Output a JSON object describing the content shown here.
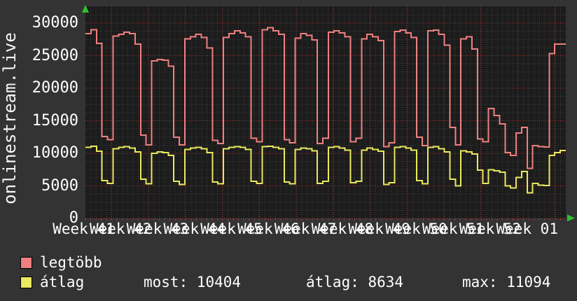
{
  "y_axis_title": "onlinestream.live",
  "footer": {
    "series1_label": "legtöbb",
    "series2_label": "átlag",
    "stat_most": "most: 10404",
    "stat_avg": "átlag: 8634",
    "stat_max": "max: 11094"
  },
  "colors": {
    "outer_background": "#333333",
    "plot_background": "#1c1c1c",
    "minor_grid": "#3e3e3e",
    "major_grid_red": "#9a3838",
    "series_max": "#f08080",
    "series_avg": "#e9e960",
    "axis_text": "#ffffff",
    "arrow_green": "#2fc22f"
  },
  "chart_data": {
    "type": "line",
    "style": "step",
    "title": "",
    "xlabel": "",
    "ylabel": "onlinestream.live",
    "grid": true,
    "legend_position": "bottom-left",
    "ylim": [
      0,
      32500
    ],
    "y_ticks": [
      0,
      5000,
      10000,
      15000,
      20000,
      25000,
      30000
    ],
    "y_minor_step": 1250,
    "x_tick_labels": [
      "Week 41",
      "Week 42",
      "Week 43",
      "Week 44",
      "Week 45",
      "Week 46",
      "Week 47",
      "Week 48",
      "Week 49",
      "Week 50",
      "Week 51",
      "Week 52",
      "Week 01"
    ],
    "weeks_shown": 13,
    "x_unit": "day",
    "stats": {
      "most": 10404,
      "atlag": 8634,
      "max": 11094
    },
    "series": [
      {
        "name": "legtöbb",
        "color": "#f08080",
        "values": [
          28400,
          29000,
          26900,
          12600,
          12100,
          28000,
          28300,
          28600,
          28400,
          26800,
          12800,
          11300,
          24200,
          24400,
          24300,
          23400,
          12500,
          11300,
          27600,
          27900,
          28300,
          27800,
          26200,
          12000,
          11500,
          27800,
          28400,
          28800,
          28500,
          27900,
          12300,
          11800,
          29000,
          29300,
          28800,
          28300,
          12100,
          11600,
          27700,
          28400,
          28100,
          27400,
          11500,
          12300,
          28600,
          28800,
          28500,
          27900,
          11800,
          12300,
          27600,
          28300,
          27900,
          27300,
          11000,
          11600,
          28700,
          28900,
          28500,
          27800,
          12500,
          11200,
          28800,
          28900,
          28300,
          26600,
          14000,
          11300,
          27600,
          27900,
          26000,
          12200,
          11800,
          16900,
          15800,
          14500,
          10100,
          9700,
          13100,
          14000,
          7700,
          11200,
          11000,
          10970,
          25300,
          26800,
          26800
        ]
      },
      {
        "name": "átlag",
        "color": "#e9e960",
        "values": [
          10900,
          11094,
          10300,
          5800,
          5400,
          10700,
          10900,
          11000,
          10800,
          10200,
          6000,
          5300,
          10000,
          10200,
          10100,
          9700,
          5700,
          5200,
          10600,
          10800,
          10900,
          10700,
          10100,
          5600,
          5300,
          10700,
          10900,
          11000,
          10900,
          10600,
          5700,
          5400,
          11000,
          11090,
          10900,
          10700,
          5600,
          5300,
          10600,
          10800,
          10700,
          10400,
          5400,
          5700,
          10900,
          11000,
          10800,
          10500,
          5500,
          5700,
          10500,
          10800,
          10600,
          10300,
          5200,
          5500,
          10900,
          11000,
          10800,
          10500,
          5800,
          5300,
          10900,
          11000,
          10700,
          10200,
          6000,
          5000,
          10400,
          10200,
          9900,
          7400,
          5400,
          7500,
          7300,
          7100,
          5000,
          4700,
          6300,
          7200,
          3900,
          5400,
          5100,
          5050,
          9700,
          10100,
          10404
        ]
      }
    ]
  }
}
